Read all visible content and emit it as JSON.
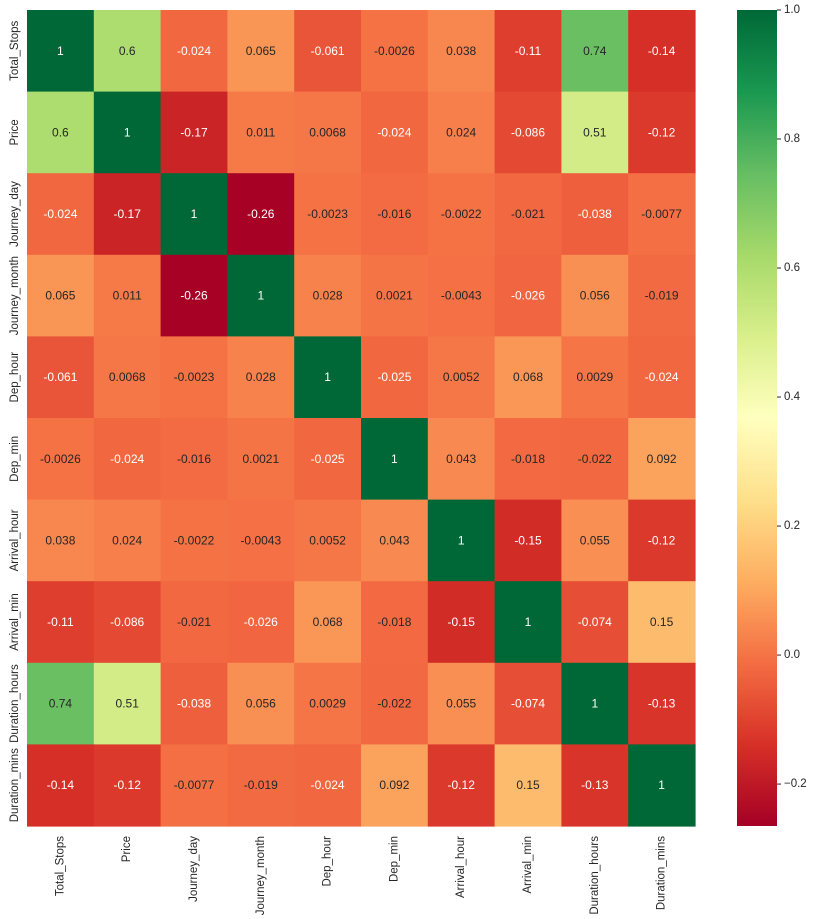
{
  "chart_data": {
    "type": "heatmap",
    "title": "",
    "xlabel": "",
    "ylabel": "",
    "colormap": "RdYlGn",
    "value_range": [
      -0.265,
      1.0
    ],
    "annotations": true,
    "x_categories": [
      "Total_Stops",
      "Price",
      "Journey_day",
      "Journey_month",
      "Dep_hour",
      "Dep_min",
      "Arrival_hour",
      "Arrival_min",
      "Duration_hours",
      "Duration_mins"
    ],
    "y_categories": [
      "Total_Stops",
      "Price",
      "Journey_day",
      "Journey_month",
      "Dep_hour",
      "Dep_min",
      "Arrival_hour",
      "Arrival_min",
      "Duration_hours",
      "Duration_mins"
    ],
    "values": [
      [
        1,
        0.6,
        -0.024,
        0.065,
        -0.061,
        -0.0026,
        0.038,
        -0.11,
        0.74,
        -0.14
      ],
      [
        0.6,
        1,
        -0.17,
        0.011,
        0.0068,
        -0.024,
        0.024,
        -0.086,
        0.51,
        -0.12
      ],
      [
        -0.024,
        -0.17,
        1,
        -0.26,
        -0.0023,
        -0.016,
        -0.0022,
        -0.021,
        -0.038,
        -0.0077
      ],
      [
        0.065,
        0.011,
        -0.26,
        1,
        0.028,
        0.0021,
        -0.0043,
        -0.026,
        0.056,
        -0.019
      ],
      [
        -0.061,
        0.0068,
        -0.0023,
        0.028,
        1,
        -0.025,
        0.0052,
        0.068,
        0.0029,
        -0.024
      ],
      [
        -0.0026,
        -0.024,
        -0.016,
        0.0021,
        -0.025,
        1,
        0.043,
        -0.018,
        -0.022,
        0.092
      ],
      [
        0.038,
        0.024,
        -0.0022,
        -0.0043,
        0.0052,
        0.043,
        1,
        -0.15,
        0.055,
        -0.12
      ],
      [
        -0.11,
        -0.086,
        -0.021,
        -0.026,
        0.068,
        -0.018,
        -0.15,
        1,
        -0.074,
        0.15
      ],
      [
        0.74,
        0.51,
        -0.038,
        0.056,
        0.0029,
        -0.022,
        0.055,
        -0.074,
        1,
        -0.13
      ],
      [
        -0.14,
        -0.12,
        -0.0077,
        -0.019,
        -0.024,
        0.092,
        -0.12,
        0.15,
        -0.13,
        1
      ]
    ],
    "labels": [
      [
        "1",
        "0.6",
        "-0.024",
        "0.065",
        "-0.061",
        "-0.0026",
        "0.038",
        "-0.11",
        "0.74",
        "-0.14"
      ],
      [
        "0.6",
        "1",
        "-0.17",
        "0.011",
        "0.0068",
        "-0.024",
        "0.024",
        "-0.086",
        "0.51",
        "-0.12"
      ],
      [
        "-0.024",
        "-0.17",
        "1",
        "-0.26",
        "-0.0023",
        "-0.016",
        "-0.0022",
        "-0.021",
        "-0.038",
        "-0.0077"
      ],
      [
        "0.065",
        "0.011",
        "-0.26",
        "1",
        "0.028",
        "0.0021",
        "-0.0043",
        "-0.026",
        "0.056",
        "-0.019"
      ],
      [
        "-0.061",
        "0.0068",
        "-0.0023",
        "0.028",
        "1",
        "-0.025",
        "0.0052",
        "0.068",
        "0.0029",
        "-0.024"
      ],
      [
        "-0.0026",
        "-0.024",
        "-0.016",
        "0.0021",
        "-0.025",
        "1",
        "0.043",
        "-0.018",
        "-0.022",
        "0.092"
      ],
      [
        "0.038",
        "0.024",
        "-0.0022",
        "-0.0043",
        "0.0052",
        "0.043",
        "1",
        "-0.15",
        "0.055",
        "-0.12"
      ],
      [
        "-0.11",
        "-0.086",
        "-0.021",
        "-0.026",
        "0.068",
        "-0.018",
        "-0.15",
        "1",
        "-0.074",
        "0.15"
      ],
      [
        "0.74",
        "0.51",
        "-0.038",
        "0.056",
        "0.0029",
        "-0.022",
        "0.055",
        "-0.074",
        "1",
        "-0.13"
      ],
      [
        "-0.14",
        "-0.12",
        "-0.0077",
        "-0.019",
        "-0.024",
        "0.092",
        "-0.12",
        "0.15",
        "-0.13",
        "1"
      ]
    ],
    "colorbar": {
      "ticks": [
        1.0,
        0.8,
        0.6,
        0.4,
        0.2,
        0.0,
        -0.2
      ],
      "tick_labels": [
        "1.0",
        "0.8",
        "0.6",
        "0.4",
        "0.2",
        "0.0",
        "−0.2"
      ]
    }
  }
}
